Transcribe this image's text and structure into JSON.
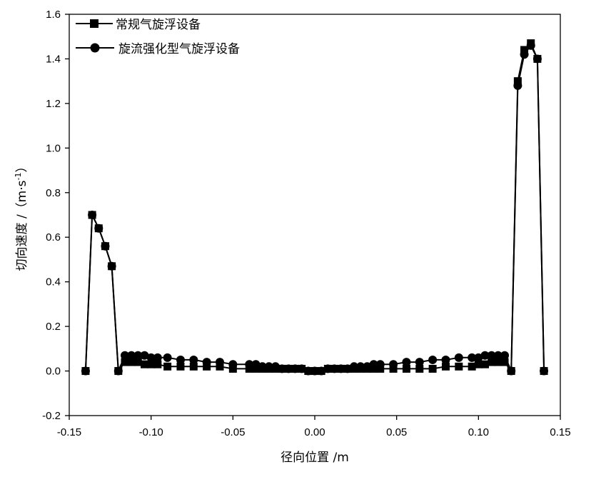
{
  "chart_data": {
    "type": "line",
    "xlabel": "径向位置 /m",
    "ylabel_main": "切向速度 /（m·s",
    "ylabel_sup": "-1",
    "ylabel_close": "）",
    "xlim": [
      -0.15,
      0.15
    ],
    "ylim": [
      -0.2,
      1.6
    ],
    "xticks": [
      -0.15,
      -0.1,
      -0.05,
      0.0,
      0.05,
      0.1,
      0.15
    ],
    "xtick_labels": [
      "-0.15",
      "-0.10",
      "-0.05",
      "0.00",
      "0.05",
      "0.10",
      "0.15"
    ],
    "yticks": [
      -0.2,
      0.0,
      0.2,
      0.4,
      0.6,
      0.8,
      1.0,
      1.2,
      1.4,
      1.6
    ],
    "ytick_labels": [
      "-0.2",
      "0.0",
      "0.2",
      "0.4",
      "0.6",
      "0.8",
      "1.0",
      "1.2",
      "1.4",
      "1.6"
    ],
    "grid": false,
    "legend_position": "top-left",
    "series": [
      {
        "name": "常规气旋浮设备",
        "marker": "square",
        "color": "#000000",
        "x": [
          -0.14,
          -0.136,
          -0.132,
          -0.128,
          -0.124,
          -0.12,
          -0.116,
          -0.112,
          -0.108,
          -0.104,
          -0.1,
          -0.096,
          -0.09,
          -0.082,
          -0.074,
          -0.066,
          -0.058,
          -0.05,
          -0.04,
          -0.036,
          -0.032,
          -0.028,
          -0.024,
          -0.02,
          -0.016,
          -0.012,
          -0.008,
          -0.004,
          0.0,
          0.004,
          0.008,
          0.012,
          0.016,
          0.02,
          0.024,
          0.028,
          0.032,
          0.036,
          0.04,
          0.048,
          0.056,
          0.064,
          0.072,
          0.08,
          0.088,
          0.096,
          0.1,
          0.104,
          0.108,
          0.112,
          0.116,
          0.12,
          0.124,
          0.128,
          0.132,
          0.136,
          0.14
        ],
        "y": [
          0.0,
          0.7,
          0.64,
          0.56,
          0.47,
          0.0,
          0.04,
          0.04,
          0.04,
          0.03,
          0.03,
          0.03,
          0.02,
          0.02,
          0.02,
          0.02,
          0.02,
          0.01,
          0.01,
          0.01,
          0.01,
          0.01,
          0.01,
          0.01,
          0.01,
          0.01,
          0.01,
          0.0,
          0.0,
          0.0,
          0.01,
          0.01,
          0.01,
          0.01,
          0.01,
          0.01,
          0.01,
          0.01,
          0.01,
          0.01,
          0.01,
          0.01,
          0.01,
          0.02,
          0.02,
          0.02,
          0.03,
          0.03,
          0.04,
          0.04,
          0.04,
          0.0,
          1.3,
          1.44,
          1.47,
          1.4,
          0.0
        ]
      },
      {
        "name": "旋流强化型气旋浮设备",
        "marker": "circle",
        "color": "#000000",
        "x": [
          -0.14,
          -0.136,
          -0.132,
          -0.128,
          -0.124,
          -0.12,
          -0.116,
          -0.112,
          -0.108,
          -0.104,
          -0.1,
          -0.096,
          -0.09,
          -0.082,
          -0.074,
          -0.066,
          -0.058,
          -0.05,
          -0.04,
          -0.036,
          -0.032,
          -0.028,
          -0.024,
          -0.02,
          -0.016,
          -0.012,
          -0.008,
          -0.004,
          0.0,
          0.004,
          0.008,
          0.012,
          0.016,
          0.02,
          0.024,
          0.028,
          0.032,
          0.036,
          0.04,
          0.048,
          0.056,
          0.064,
          0.072,
          0.08,
          0.088,
          0.096,
          0.1,
          0.104,
          0.108,
          0.112,
          0.116,
          0.12,
          0.124,
          0.128,
          0.132,
          0.136,
          0.14
        ],
        "y": [
          0.0,
          0.7,
          0.64,
          0.56,
          0.47,
          0.0,
          0.07,
          0.07,
          0.07,
          0.07,
          0.06,
          0.06,
          0.06,
          0.05,
          0.05,
          0.04,
          0.04,
          0.03,
          0.03,
          0.03,
          0.02,
          0.02,
          0.02,
          0.01,
          0.01,
          0.01,
          0.01,
          0.0,
          0.0,
          0.0,
          0.01,
          0.01,
          0.01,
          0.01,
          0.02,
          0.02,
          0.02,
          0.03,
          0.03,
          0.03,
          0.04,
          0.04,
          0.05,
          0.05,
          0.06,
          0.06,
          0.06,
          0.07,
          0.07,
          0.07,
          0.07,
          0.0,
          1.28,
          1.42,
          1.46,
          1.4,
          0.0
        ]
      }
    ]
  }
}
